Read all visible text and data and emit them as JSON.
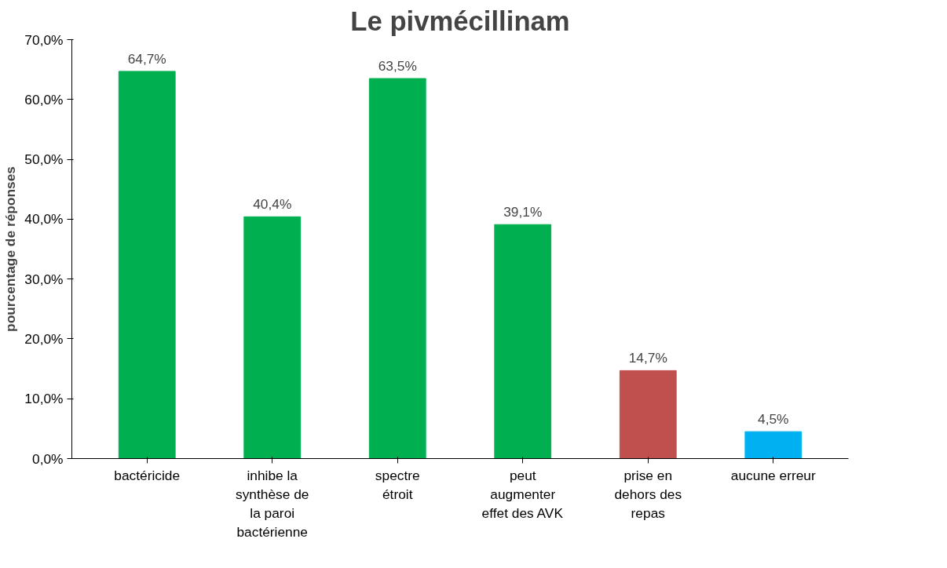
{
  "chart_data": {
    "type": "bar",
    "title": "Le pivmécillinam",
    "ylabel": "pourcentage de réponses",
    "categories": [
      "bactéricide",
      "inhibe la synthèse de la paroi bactérienne",
      "spectre étroit",
      "peut augmenter effet des AVK",
      "prise en dehors des repas",
      "aucune erreur"
    ],
    "values": [
      64.7,
      40.4,
      63.5,
      39.1,
      14.7,
      4.5
    ],
    "colors": [
      "#00b050",
      "#00b050",
      "#00b050",
      "#00b050",
      "#c0504d",
      "#00b0f0"
    ],
    "value_labels": [
      "64,7%",
      "40,4%",
      "63,5%",
      "39,1%",
      "14,7%",
      "4,5%"
    ],
    "ylim": [
      0,
      70
    ],
    "yticks": [
      {
        "value": 0,
        "label": "0,0%"
      },
      {
        "value": 10,
        "label": "10,0%"
      },
      {
        "value": 20,
        "label": "20,0%"
      },
      {
        "value": 30,
        "label": "30,0%"
      },
      {
        "value": 40,
        "label": "40,0%"
      },
      {
        "value": 50,
        "label": "50,0%"
      },
      {
        "value": 60,
        "label": "60,0%"
      },
      {
        "value": 70,
        "label": "70,0%"
      }
    ],
    "grid": false
  }
}
